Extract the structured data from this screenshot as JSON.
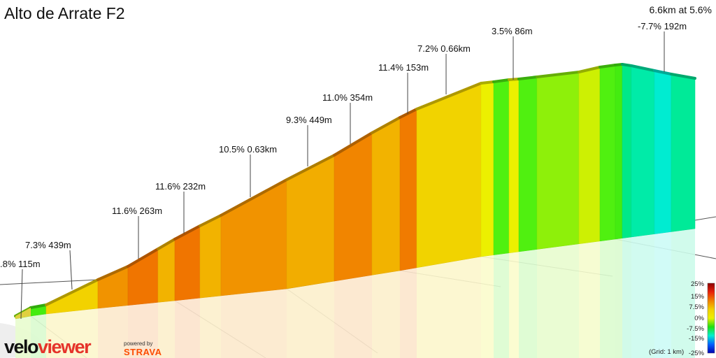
{
  "title": "Alto de Arrate F2",
  "summary": "6.6km at 5.6%",
  "logo": {
    "part1": "velo",
    "part2": "viewer"
  },
  "powered_by": "powered by",
  "strava": "STRAVA",
  "grid_note": "(Grid: 1 km)",
  "chart_data": {
    "type": "area",
    "title": "Alto de Arrate F2",
    "xlabel": "",
    "ylabel": "",
    "grid": true,
    "grid_spacing_km": 1,
    "profile": [
      {
        "gradient": 3.0
      },
      {
        "gradient": 1.5
      },
      {
        "gradient": 7.3
      },
      {
        "gradient": 10.5
      },
      {
        "gradient": 11.6
      },
      {
        "gradient": 9.0
      },
      {
        "gradient": 11.6
      },
      {
        "gradient": 9.0
      },
      {
        "gradient": 10.5
      },
      {
        "gradient": 9.3
      },
      {
        "gradient": 11.0
      },
      {
        "gradient": 9.0
      },
      {
        "gradient": 11.4
      },
      {
        "gradient": 7.2
      },
      {
        "gradient": 4.5
      },
      {
        "gradient": 2.0
      },
      {
        "gradient": 4.5
      },
      {
        "gradient": 2.0
      },
      {
        "gradient": 3.0
      },
      {
        "gradient": 4.0
      },
      {
        "gradient": 2.0
      },
      {
        "gradient": 1.5
      },
      {
        "gradient": -3.0
      },
      {
        "gradient": -5.0
      },
      {
        "gradient": -7.7
      },
      {
        "gradient": -4.0
      }
    ],
    "annotations": [
      {
        "label": ".8% 115m"
      },
      {
        "label": "7.3% 439m"
      },
      {
        "label": "11.6% 263m"
      },
      {
        "label": "11.6% 232m"
      },
      {
        "label": "10.5% 0.63km"
      },
      {
        "label": "9.3% 449m"
      },
      {
        "label": "11.0% 354m"
      },
      {
        "label": "11.4% 153m"
      },
      {
        "label": "7.2% 0.66km"
      },
      {
        "label": "3.5% 86m"
      },
      {
        "label": "-7.7% 192m"
      }
    ],
    "legend": {
      "labels": [
        "25%",
        "15%",
        "7.5%",
        "0%",
        "-7.5%",
        "-15%",
        "-25%"
      ],
      "colors": [
        "#8b0000",
        "#e8200a",
        "#f08000",
        "#f2d000",
        "#ecf000",
        "#20e010",
        "#00f0d0",
        "#0060ff",
        "#0000b0"
      ]
    }
  }
}
